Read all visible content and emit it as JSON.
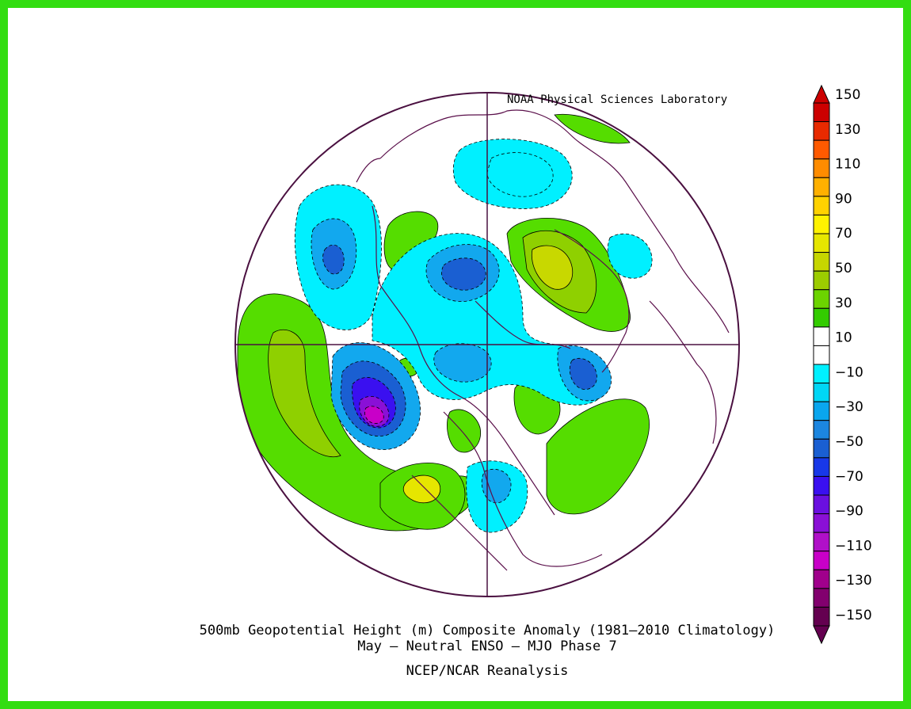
{
  "credit": "NOAA Physical Sciences Laboratory",
  "title_lines": [
    "500mb Geopotential Height (m) Composite Anomaly (1981–2010 Climatology)",
    "May – Neutral ENSO – MJO Phase 7",
    "NCEP/NCAR Reanalysis"
  ],
  "colorbar": {
    "labels": [
      "150",
      "130",
      "110",
      "90",
      "70",
      "50",
      "30",
      "10",
      "−10",
      "−30",
      "−50",
      "−70",
      "−90",
      "−110",
      "−130",
      "−150"
    ],
    "colors": [
      "#cc0000",
      "#e82a00",
      "#ff5a00",
      "#ff8c00",
      "#ffb000",
      "#ffd200",
      "#fff200",
      "#e6e600",
      "#c6d600",
      "#9ccc00",
      "#6cd400",
      "#33cc00",
      "#ffffff",
      "#ffffff",
      "#00f0ff",
      "#00d6f5",
      "#0aa6ee",
      "#1c86e0",
      "#1a5fd2",
      "#1838e8",
      "#3a10f0",
      "#6a10e0",
      "#8a10d6",
      "#b010c8",
      "#c800c8",
      "#a0008c",
      "#82006e",
      "#640050"
    ]
  },
  "map_colors": {
    "outline": "#4a1040",
    "coast": "#5a0f4a",
    "neg1": "#00f0ff",
    "neg2": "#12a8ee",
    "neg3": "#1a5fd2",
    "neg4": "#3a10f0",
    "neg5": "#8a10d6",
    "neg6": "#c800c8",
    "pos1": "#55dd00",
    "pos2": "#8fd000",
    "pos3": "#c8d800",
    "pos4": "#e6e600"
  }
}
